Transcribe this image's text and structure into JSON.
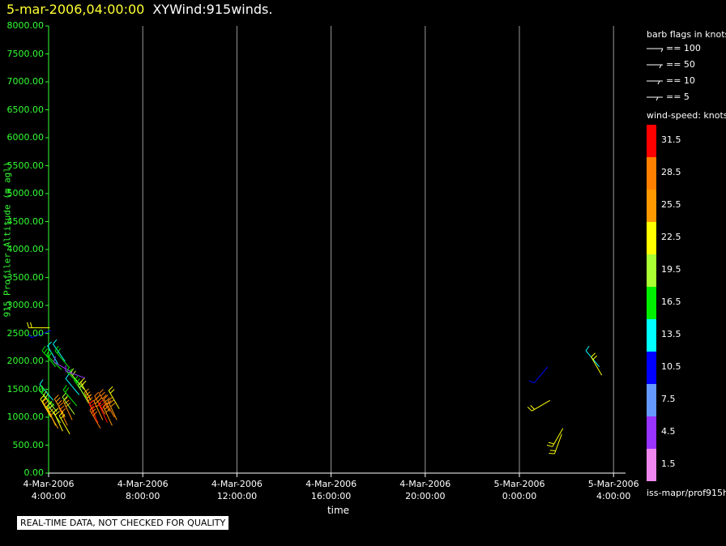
{
  "header": {
    "datetime": "5-mar-2006,04:00:00",
    "product": "XYWind:915winds."
  },
  "note": "REAL-TIME DATA, NOT CHECKED FOR QUALITY",
  "legend": {
    "barb_title": "barb flags in knots",
    "barbs": [
      {
        "label": "== 100"
      },
      {
        "label": "== 50"
      },
      {
        "label": "== 10"
      },
      {
        "label": "== 5"
      }
    ],
    "colorbar_title": "wind-speed: knots",
    "colorbar": [
      {
        "label": "31.5",
        "color": "#ff0000"
      },
      {
        "label": "28.5",
        "color": "#ff7f00"
      },
      {
        "label": "25.5",
        "color": "#ff9900"
      },
      {
        "label": "22.5",
        "color": "#ffff00"
      },
      {
        "label": "19.5",
        "color": "#aaff33"
      },
      {
        "label": "16.5",
        "color": "#00ee00"
      },
      {
        "label": "13.5",
        "color": "#00ffff"
      },
      {
        "label": "10.5",
        "color": "#0000ff"
      },
      {
        "label": "7.5",
        "color": "#6699ff"
      },
      {
        "label": "4.5",
        "color": "#9933ff"
      },
      {
        "label": "1.5",
        "color": "#ee88ee"
      }
    ],
    "source": "iss-mapr/prof915h"
  },
  "chart_data": {
    "type": "scatter",
    "title": "XYWind:915winds.",
    "xlabel": "time",
    "ylabel": "915 Profiler Altitude (m agl)",
    "x_ticks": [
      "4-Mar-2006\n4:00:00",
      "4-Mar-2006\n8:00:00",
      "4-Mar-2006\n12:00:00",
      "4-Mar-2006\n16:00:00",
      "4-Mar-2006\n20:00:00",
      "5-Mar-2006\n0:00:00",
      "5-Mar-2006\n4:00:00"
    ],
    "x_tick_hours": [
      0,
      4,
      8,
      12,
      16,
      20,
      24
    ],
    "xlim_hours": [
      0,
      24.5
    ],
    "y_ticks": [
      "0.00",
      "500.00",
      "1000.00",
      "1500.00",
      "2000.00",
      "2500.00",
      "3000.00",
      "3500.00",
      "4000.00",
      "4500.00",
      "5000.00",
      "5500.00",
      "6000.00",
      "6500.00",
      "7000.00",
      "7500.00",
      "8000.00"
    ],
    "ylim": [
      0,
      8000
    ],
    "grid": "vertical",
    "series": [
      {
        "hour": 0.05,
        "alt": 2600,
        "speed": 22.5,
        "dir": 270
      },
      {
        "hour": 0.1,
        "alt": 2550,
        "speed": 10.5,
        "dir": 250
      },
      {
        "hour": 0.3,
        "alt": 1900,
        "speed": 16.5,
        "dir": 320
      },
      {
        "hour": 0.4,
        "alt": 1950,
        "speed": 13.5,
        "dir": 330
      },
      {
        "hour": 0.55,
        "alt": 1850,
        "speed": 16.5,
        "dir": 315
      },
      {
        "hour": 0.7,
        "alt": 2000,
        "speed": 13.5,
        "dir": 325
      },
      {
        "hour": 0.85,
        "alt": 1900,
        "speed": 16.5,
        "dir": 320
      },
      {
        "hour": 1.0,
        "alt": 1800,
        "speed": 4.5,
        "dir": 300
      },
      {
        "hour": 0.2,
        "alt": 1300,
        "speed": 13.5,
        "dir": 320
      },
      {
        "hour": 0.25,
        "alt": 1200,
        "speed": 16.5,
        "dir": 315
      },
      {
        "hour": 0.35,
        "alt": 1100,
        "speed": 19.5,
        "dir": 320
      },
      {
        "hour": 0.1,
        "alt": 1000,
        "speed": 22.5,
        "dir": 330
      },
      {
        "hour": 0.2,
        "alt": 950,
        "speed": 25.5,
        "dir": 330
      },
      {
        "hour": 0.3,
        "alt": 850,
        "speed": 22.5,
        "dir": 335
      },
      {
        "hour": 0.4,
        "alt": 800,
        "speed": 25.5,
        "dir": 330
      },
      {
        "hour": 0.5,
        "alt": 900,
        "speed": 19.5,
        "dir": 325
      },
      {
        "hour": 0.6,
        "alt": 750,
        "speed": 22.5,
        "dir": 335
      },
      {
        "hour": 0.7,
        "alt": 1000,
        "speed": 25.5,
        "dir": 330
      },
      {
        "hour": 0.8,
        "alt": 850,
        "speed": 28.5,
        "dir": 335
      },
      {
        "hour": 0.9,
        "alt": 700,
        "speed": 22.5,
        "dir": 330
      },
      {
        "hour": 1.0,
        "alt": 950,
        "speed": 25.5,
        "dir": 335
      },
      {
        "hour": 1.1,
        "alt": 1050,
        "speed": 19.5,
        "dir": 325
      },
      {
        "hour": 1.2,
        "alt": 1200,
        "speed": 16.5,
        "dir": 320
      },
      {
        "hour": 1.3,
        "alt": 1400,
        "speed": 13.5,
        "dir": 320
      },
      {
        "hour": 1.4,
        "alt": 1550,
        "speed": 16.5,
        "dir": 315
      },
      {
        "hour": 1.5,
        "alt": 1500,
        "speed": 19.5,
        "dir": 320
      },
      {
        "hour": 1.6,
        "alt": 1350,
        "speed": 16.5,
        "dir": 325
      },
      {
        "hour": 1.7,
        "alt": 1250,
        "speed": 19.5,
        "dir": 330
      },
      {
        "hour": 1.8,
        "alt": 1300,
        "speed": 22.5,
        "dir": 330
      },
      {
        "hour": 1.9,
        "alt": 1100,
        "speed": 25.5,
        "dir": 335
      },
      {
        "hour": 2.0,
        "alt": 1000,
        "speed": 28.5,
        "dir": 335
      },
      {
        "hour": 2.1,
        "alt": 900,
        "speed": 31.5,
        "dir": 335
      },
      {
        "hour": 2.2,
        "alt": 800,
        "speed": 28.5,
        "dir": 330
      },
      {
        "hour": 2.3,
        "alt": 950,
        "speed": 25.5,
        "dir": 335
      },
      {
        "hour": 2.4,
        "alt": 1050,
        "speed": 28.5,
        "dir": 330
      },
      {
        "hour": 2.5,
        "alt": 900,
        "speed": 31.5,
        "dir": 335
      },
      {
        "hour": 2.6,
        "alt": 1100,
        "speed": 28.5,
        "dir": 330
      },
      {
        "hour": 2.7,
        "alt": 850,
        "speed": 25.5,
        "dir": 335
      },
      {
        "hour": 2.8,
        "alt": 1000,
        "speed": 28.5,
        "dir": 330
      },
      {
        "hour": 2.9,
        "alt": 950,
        "speed": 25.5,
        "dir": 335
      },
      {
        "hour": 3.0,
        "alt": 1150,
        "speed": 22.5,
        "dir": 330
      },
      {
        "hour": 1.55,
        "alt": 1700,
        "speed": 4.5,
        "dir": 290
      },
      {
        "hour": 21.2,
        "alt": 1900,
        "speed": 10.5,
        "dir": 220
      },
      {
        "hour": 21.3,
        "alt": 1300,
        "speed": 22.5,
        "dir": 240
      },
      {
        "hour": 21.8,
        "alt": 700,
        "speed": 22.5,
        "dir": 200
      },
      {
        "hour": 21.85,
        "alt": 800,
        "speed": 22.5,
        "dir": 210
      },
      {
        "hour": 23.4,
        "alt": 1900,
        "speed": 13.5,
        "dir": 320
      },
      {
        "hour": 23.5,
        "alt": 1750,
        "speed": 22.5,
        "dir": 330
      }
    ]
  }
}
